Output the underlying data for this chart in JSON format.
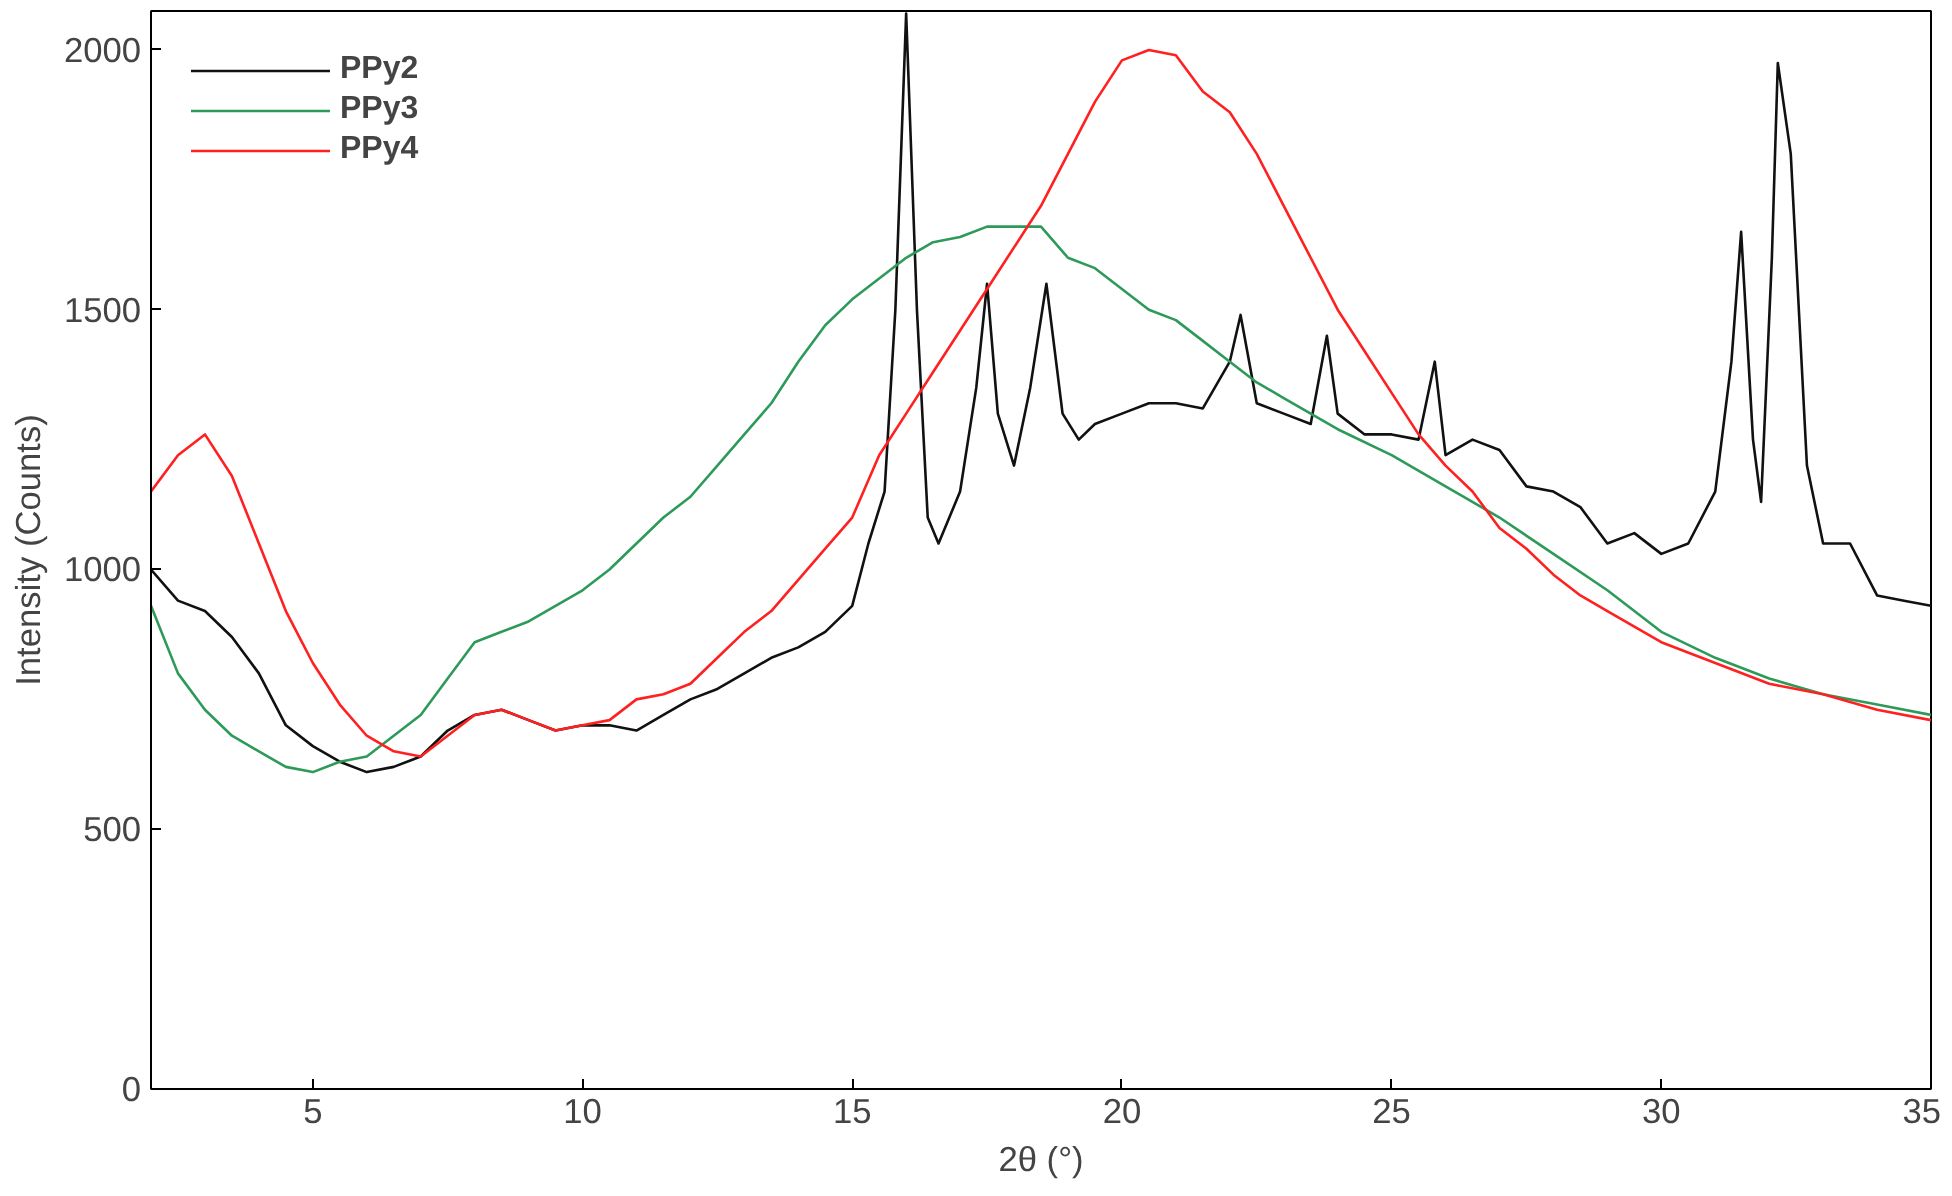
{
  "chart_data": {
    "type": "line",
    "xlabel": "2θ (°)",
    "ylabel": "Intensity (Counts)",
    "xlim": [
      2,
      35
    ],
    "ylim": [
      0,
      2075
    ],
    "xticks": [
      5,
      10,
      15,
      20,
      25,
      30,
      35
    ],
    "yticks": [
      0,
      500,
      1000,
      1500,
      2000
    ],
    "grid": false,
    "legend": "top left",
    "line_style": "solid",
    "marker": "none",
    "series": [
      {
        "name": "PPy2",
        "color": "#111111",
        "x": [
          2,
          2.5,
          3,
          3.5,
          4,
          4.5,
          5,
          5.5,
          6,
          6.5,
          7,
          7.5,
          8,
          8.5,
          9,
          9.5,
          10,
          10.5,
          11,
          11.5,
          12,
          12.5,
          13,
          13.5,
          14,
          14.5,
          15,
          15.3,
          15.6,
          15.8,
          16,
          16.2,
          16.4,
          16.6,
          17,
          17.3,
          17.5,
          17.7,
          18,
          18.3,
          18.6,
          18.9,
          19.2,
          19.5,
          20,
          20.5,
          21,
          21.5,
          22,
          22.2,
          22.5,
          23,
          23.5,
          23.8,
          24,
          24.5,
          25,
          25.5,
          25.8,
          26,
          26.5,
          27,
          27.5,
          28,
          28.5,
          29,
          29.5,
          30,
          30.5,
          31,
          31.3,
          31.48,
          31.7,
          31.85,
          32.05,
          32.16,
          32.4,
          32.7,
          33,
          33.5,
          34,
          34.5,
          35
        ],
        "values": [
          1000,
          940,
          920,
          870,
          800,
          700,
          660,
          630,
          610,
          620,
          640,
          690,
          720,
          730,
          710,
          690,
          700,
          700,
          690,
          720,
          750,
          770,
          800,
          830,
          850,
          880,
          930,
          1050,
          1150,
          1500,
          2070,
          1500,
          1100,
          1050,
          1150,
          1350,
          1550,
          1300,
          1200,
          1350,
          1550,
          1300,
          1250,
          1280,
          1300,
          1320,
          1320,
          1310,
          1400,
          1490,
          1320,
          1300,
          1280,
          1450,
          1300,
          1260,
          1260,
          1250,
          1400,
          1220,
          1250,
          1230,
          1160,
          1150,
          1120,
          1050,
          1070,
          1030,
          1050,
          1150,
          1400,
          1650,
          1250,
          1130,
          1600,
          1975,
          1800,
          1200,
          1050,
          1050,
          950,
          940,
          930
        ]
      },
      {
        "name": "PPy3",
        "color": "#2e9a5a",
        "x": [
          2,
          2.5,
          3,
          3.5,
          4,
          4.5,
          5,
          5.5,
          6,
          6.5,
          7,
          7.5,
          8,
          8.5,
          9,
          9.5,
          10,
          10.5,
          11,
          11.5,
          12,
          12.5,
          13,
          13.5,
          14,
          14.5,
          15,
          15.5,
          16,
          16.5,
          17,
          17.5,
          18,
          18.5,
          19,
          19.5,
          20,
          20.5,
          21,
          21.5,
          22,
          22.5,
          23,
          23.5,
          24,
          25,
          26,
          27,
          28,
          29,
          30,
          31,
          32,
          33,
          34,
          35
        ],
        "values": [
          930,
          800,
          730,
          680,
          650,
          620,
          610,
          630,
          640,
          680,
          720,
          790,
          860,
          880,
          900,
          930,
          960,
          1000,
          1050,
          1100,
          1140,
          1200,
          1260,
          1320,
          1400,
          1470,
          1520,
          1560,
          1600,
          1630,
          1640,
          1660,
          1660,
          1660,
          1600,
          1580,
          1540,
          1500,
          1480,
          1440,
          1400,
          1360,
          1330,
          1300,
          1270,
          1220,
          1160,
          1100,
          1030,
          960,
          880,
          830,
          790,
          760,
          740,
          720
        ]
      },
      {
        "name": "PPy4",
        "color": "#ff2020",
        "x": [
          2,
          2.5,
          3,
          3.5,
          4,
          4.5,
          5,
          5.5,
          6,
          6.5,
          7,
          7.5,
          8,
          8.5,
          9,
          9.5,
          10,
          10.5,
          11,
          11.5,
          12,
          12.5,
          13,
          13.5,
          14,
          14.5,
          15,
          15.5,
          16,
          16.5,
          17,
          17.5,
          18,
          18.5,
          19,
          19.5,
          20,
          20.5,
          21,
          21.5,
          22,
          22.5,
          23,
          23.5,
          24,
          24.5,
          25,
          25.5,
          26,
          26.5,
          27,
          27.5,
          28,
          28.5,
          29,
          30,
          31,
          32,
          33,
          34,
          35
        ],
        "values": [
          1150,
          1220,
          1260,
          1180,
          1050,
          920,
          820,
          740,
          680,
          650,
          640,
          680,
          720,
          730,
          710,
          690,
          700,
          710,
          750,
          760,
          780,
          830,
          880,
          920,
          980,
          1040,
          1100,
          1220,
          1300,
          1380,
          1460,
          1540,
          1620,
          1700,
          1800,
          1900,
          1980,
          2000,
          1990,
          1920,
          1880,
          1800,
          1700,
          1600,
          1500,
          1420,
          1340,
          1260,
          1200,
          1150,
          1080,
          1040,
          990,
          950,
          920,
          860,
          820,
          780,
          760,
          730,
          710
        ]
      }
    ]
  }
}
